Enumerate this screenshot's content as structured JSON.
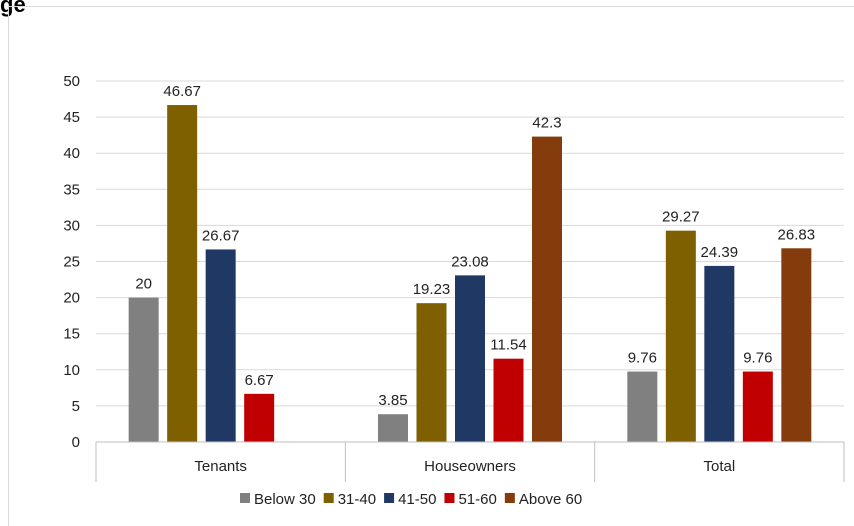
{
  "header": {
    "title": "ge"
  },
  "chart_data": {
    "type": "bar",
    "categories": [
      "Tenants",
      "Houseowners",
      "Total"
    ],
    "series": [
      {
        "name": "Below 30",
        "color": "#808080",
        "values": [
          20,
          3.85,
          9.76
        ],
        "labels": [
          "20",
          "3.85",
          "9.76"
        ]
      },
      {
        "name": "31-40",
        "color": "#7f6000",
        "values": [
          46.67,
          19.23,
          29.27
        ],
        "labels": [
          "46.67",
          "19.23",
          "29.27"
        ]
      },
      {
        "name": "41-50",
        "color": "#1f3864",
        "values": [
          26.67,
          23.08,
          24.39
        ],
        "labels": [
          "26.67",
          "23.08",
          "24.39"
        ]
      },
      {
        "name": "51-60",
        "color": "#c00000",
        "values": [
          6.67,
          11.54,
          9.76
        ],
        "labels": [
          "6.67",
          "11.54",
          "9.76"
        ]
      },
      {
        "name": "Above 60",
        "color": "#843c0c",
        "values": [
          null,
          42.3,
          26.83
        ],
        "labels": [
          "",
          "42.3",
          "26.83"
        ]
      }
    ],
    "yticks": [
      "0",
      "5",
      "10",
      "15",
      "20",
      "25",
      "30",
      "35",
      "40",
      "45",
      "50"
    ],
    "ylim": [
      0,
      50
    ],
    "grid": true,
    "legend_position": "bottom"
  }
}
